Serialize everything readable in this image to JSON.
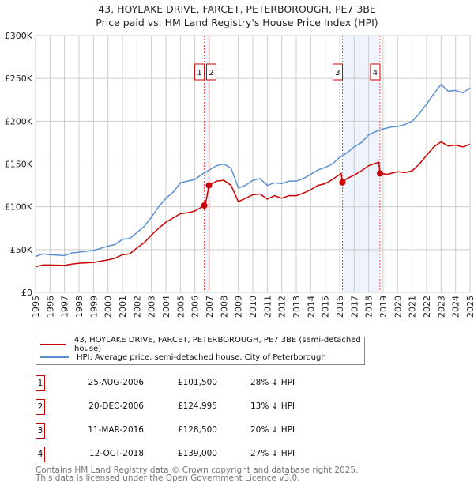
{
  "title": "43, HOYLAKE DRIVE, FARCET, PETERBOROUGH, PE7 3BE",
  "subtitle": "Price paid vs. HM Land Registry's House Price Index (HPI)",
  "chart_data": {
    "type": "line",
    "xlim": [
      1995,
      2025
    ],
    "ylim": [
      0,
      300000
    ],
    "y_ticks": [
      {
        "v": 0,
        "label": "£0"
      },
      {
        "v": 50000,
        "label": "£50K"
      },
      {
        "v": 100000,
        "label": "£100K"
      },
      {
        "v": 150000,
        "label": "£150K"
      },
      {
        "v": 200000,
        "label": "£200K"
      },
      {
        "v": 250000,
        "label": "£250K"
      },
      {
        "v": 300000,
        "label": "£300K"
      }
    ],
    "x_ticks": [
      "1995",
      "1996",
      "1997",
      "1998",
      "1999",
      "2000",
      "2001",
      "2002",
      "2003",
      "2004",
      "2005",
      "2006",
      "2007",
      "2008",
      "2009",
      "2010",
      "2011",
      "2012",
      "2013",
      "2014",
      "2015",
      "2016",
      "2017",
      "2018",
      "2019",
      "2020",
      "2021",
      "2022",
      "2023",
      "2024",
      "2025"
    ],
    "grid": true,
    "series": [
      {
        "name": "43, HOYLAKE DRIVE, FARCET, PETERBOROUGH, PE7 3BE (semi-detached house)",
        "color": "#cc0000",
        "points": [
          [
            1995,
            30
          ],
          [
            1995.5,
            32
          ],
          [
            1996,
            32
          ],
          [
            1997,
            31.5
          ],
          [
            1997.5,
            33
          ],
          [
            1998,
            34
          ],
          [
            1999,
            35
          ],
          [
            2000,
            38
          ],
          [
            2000.5,
            40
          ],
          [
            2001,
            44
          ],
          [
            2001.5,
            45
          ],
          [
            2002,
            52
          ],
          [
            2002.5,
            58
          ],
          [
            2003,
            67
          ],
          [
            2003.5,
            75
          ],
          [
            2004,
            82
          ],
          [
            2004.5,
            87
          ],
          [
            2005,
            92
          ],
          [
            2005.5,
            93
          ],
          [
            2006,
            95
          ],
          [
            2006.65,
            101.5
          ],
          [
            2006.72,
            101.5
          ],
          [
            2006.97,
            124.995
          ],
          [
            2007.5,
            130
          ],
          [
            2008,
            131
          ],
          [
            2008.5,
            125
          ],
          [
            2009,
            106
          ],
          [
            2009.5,
            110
          ],
          [
            2010,
            114
          ],
          [
            2010.5,
            115
          ],
          [
            2011,
            109
          ],
          [
            2011.5,
            113
          ],
          [
            2012,
            110
          ],
          [
            2012.5,
            113
          ],
          [
            2013,
            113
          ],
          [
            2013.5,
            116
          ],
          [
            2014,
            120
          ],
          [
            2014.5,
            125
          ],
          [
            2015,
            127
          ],
          [
            2015.5,
            132
          ],
          [
            2016.1,
            139
          ],
          [
            2016.19,
            128.5
          ],
          [
            2016.5,
            133
          ],
          [
            2017,
            137
          ],
          [
            2017.5,
            142
          ],
          [
            2018,
            148
          ],
          [
            2018.5,
            151
          ],
          [
            2018.7,
            152
          ],
          [
            2018.78,
            139
          ],
          [
            2019.3,
            138
          ],
          [
            2020,
            141
          ],
          [
            2020.5,
            140
          ],
          [
            2021,
            142
          ],
          [
            2021.5,
            150
          ],
          [
            2022,
            160
          ],
          [
            2022.5,
            170
          ],
          [
            2023,
            176
          ],
          [
            2023.5,
            171
          ],
          [
            2024,
            172
          ],
          [
            2024.5,
            170
          ],
          [
            2025,
            173
          ]
        ]
      },
      {
        "name": "HPI: Average price, semi-detached house, City of Peterborough",
        "color": "#5b8fd4",
        "points": [
          [
            1995,
            42
          ],
          [
            1995.5,
            45
          ],
          [
            1996,
            44
          ],
          [
            1997,
            43
          ],
          [
            1997.5,
            46
          ],
          [
            1998,
            47
          ],
          [
            1999,
            49
          ],
          [
            2000,
            54
          ],
          [
            2000.5,
            56
          ],
          [
            2001,
            62
          ],
          [
            2001.5,
            63
          ],
          [
            2002,
            70
          ],
          [
            2002.5,
            77
          ],
          [
            2003,
            88
          ],
          [
            2003.5,
            100
          ],
          [
            2004,
            110
          ],
          [
            2004.5,
            117
          ],
          [
            2005,
            128
          ],
          [
            2005.5,
            130
          ],
          [
            2006,
            132
          ],
          [
            2006.5,
            138
          ],
          [
            2007,
            143
          ],
          [
            2007.5,
            148
          ],
          [
            2008,
            150
          ],
          [
            2008.5,
            145
          ],
          [
            2009,
            122
          ],
          [
            2009.5,
            125
          ],
          [
            2010,
            131
          ],
          [
            2010.5,
            133
          ],
          [
            2011,
            125
          ],
          [
            2011.5,
            128
          ],
          [
            2012,
            127
          ],
          [
            2012.5,
            130
          ],
          [
            2013,
            130
          ],
          [
            2013.5,
            133
          ],
          [
            2014,
            138
          ],
          [
            2014.5,
            143
          ],
          [
            2015,
            146
          ],
          [
            2015.5,
            150
          ],
          [
            2016,
            158
          ],
          [
            2016.5,
            163
          ],
          [
            2017,
            170
          ],
          [
            2017.5,
            175
          ],
          [
            2018,
            184
          ],
          [
            2018.5,
            188
          ],
          [
            2019,
            191
          ],
          [
            2019.5,
            193
          ],
          [
            2020,
            194
          ],
          [
            2020.5,
            196
          ],
          [
            2021,
            200
          ],
          [
            2021.5,
            209
          ],
          [
            2022,
            220
          ],
          [
            2022.5,
            232
          ],
          [
            2023,
            243
          ],
          [
            2023.5,
            235
          ],
          [
            2024,
            236
          ],
          [
            2024.5,
            233
          ],
          [
            2025,
            239
          ]
        ]
      }
    ],
    "value_unit": "thousands GBP",
    "transactions": [
      {
        "label": "1",
        "x": 2006.65,
        "y": 101.5
      },
      {
        "label": "2",
        "x": 2006.97,
        "y": 124.995
      },
      {
        "label": "3",
        "x": 2016.19,
        "y": 128.5
      },
      {
        "label": "4",
        "x": 2018.78,
        "y": 139
      }
    ],
    "shaded_ranges": [
      [
        2006.65,
        2006.97
      ],
      [
        2016.19,
        2018.78
      ]
    ],
    "legend_placement": "below"
  },
  "table": [
    {
      "n": "1",
      "date": "25-AUG-2006",
      "price": "£101,500",
      "hpi": "28% ↓ HPI"
    },
    {
      "n": "2",
      "date": "20-DEC-2006",
      "price": "£124,995",
      "hpi": "13% ↓ HPI"
    },
    {
      "n": "3",
      "date": "11-MAR-2016",
      "price": "£128,500",
      "hpi": "20% ↓ HPI"
    },
    {
      "n": "4",
      "date": "12-OCT-2018",
      "price": "£139,000",
      "hpi": "27% ↓ HPI"
    }
  ],
  "footer": [
    "Contains HM Land Registry data © Crown copyright and database right 2025.",
    "This data is licensed under the Open Government Licence v3.0."
  ]
}
